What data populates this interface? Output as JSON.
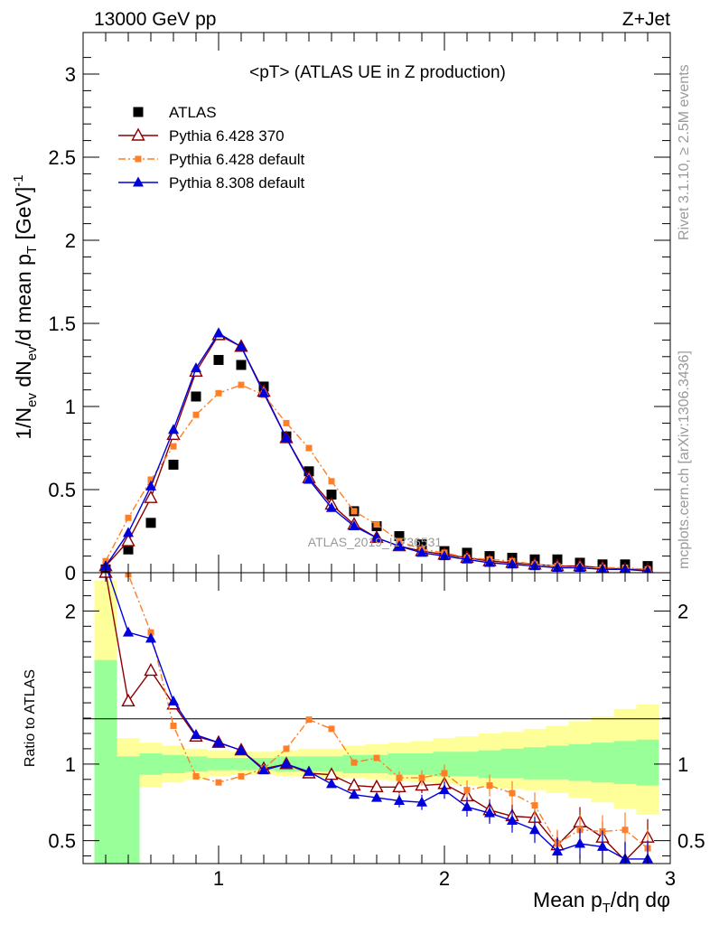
{
  "header": {
    "left": "13000 GeV pp",
    "right": "Z+Jet"
  },
  "side_labels": {
    "top": "Rivet 3.1.10, ≥ 2.5M events",
    "bottom": "mcplots.cern.ch [arXiv:1306.3436]"
  },
  "watermark": "ATLAS_2019_I1736531",
  "colors": {
    "atlas": "#000000",
    "py6_370": "#8b0000",
    "py6_default": "#ff7f27",
    "py8": "#0000dd",
    "band_yellow": "#ffff99",
    "band_green": "#99ff99"
  },
  "chart_data": [
    {
      "type": "scatter",
      "title": "<pT> (ATLAS UE in Z production)",
      "ylabel": "1/N_ev dN_ev/d mean p_T [GeV]^-1",
      "ylabel_parts": {
        "a": "1/N",
        "a_sub": "ev",
        "b": " dN",
        "b_sub": "ev",
        "c": "/d mean p",
        "c_sub": "T",
        "d": " [GeV]",
        "d_sup": "-1"
      },
      "xlim": [
        0.4,
        3.0
      ],
      "ylim": [
        0,
        3.25
      ],
      "yticks": [
        0,
        0.5,
        1,
        1.5,
        2,
        2.5,
        3
      ],
      "ytick_labels": [
        "0",
        "0.5",
        "1",
        "1.5",
        "2",
        "2.5",
        "3"
      ],
      "x": [
        0.5,
        0.6,
        0.7,
        0.8,
        0.9,
        1.0,
        1.1,
        1.2,
        1.3,
        1.4,
        1.5,
        1.6,
        1.7,
        1.8,
        1.9,
        2.0,
        2.1,
        2.2,
        2.3,
        2.4,
        2.5,
        2.6,
        2.7,
        2.8,
        2.9
      ],
      "series": [
        {
          "name": "ATLAS",
          "style": "data",
          "values": [
            0.02,
            0.14,
            0.3,
            0.65,
            1.06,
            1.28,
            1.25,
            1.12,
            0.82,
            0.61,
            0.47,
            0.37,
            0.28,
            0.22,
            0.17,
            0.13,
            0.12,
            0.1,
            0.09,
            0.08,
            0.08,
            0.06,
            0.05,
            0.05,
            0.04
          ]
        },
        {
          "name": "Pythia 6.428 370",
          "style": "py6_370",
          "values": [
            0.04,
            0.19,
            0.45,
            0.83,
            1.21,
            1.43,
            1.36,
            1.09,
            0.81,
            0.57,
            0.41,
            0.29,
            0.21,
            0.16,
            0.13,
            0.11,
            0.09,
            0.07,
            0.06,
            0.05,
            0.04,
            0.04,
            0.03,
            0.02,
            0.02
          ]
        },
        {
          "name": "Pythia 6.428 default",
          "style": "py6_default",
          "values": [
            0.07,
            0.33,
            0.56,
            0.76,
            0.95,
            1.08,
            1.13,
            1.07,
            0.9,
            0.75,
            0.55,
            0.37,
            0.29,
            0.19,
            0.14,
            0.12,
            0.09,
            0.08,
            0.07,
            0.05,
            0.04,
            0.03,
            0.03,
            0.03,
            0.02
          ]
        },
        {
          "name": "Pythia 8.308 default",
          "style": "py8",
          "values": [
            0.04,
            0.24,
            0.52,
            0.86,
            1.23,
            1.44,
            1.36,
            1.08,
            0.81,
            0.56,
            0.39,
            0.28,
            0.21,
            0.16,
            0.12,
            0.1,
            0.08,
            0.06,
            0.05,
            0.04,
            0.03,
            0.03,
            0.02,
            0.02,
            0.01
          ]
        }
      ],
      "legend": [
        "ATLAS",
        "Pythia 6.428 370",
        "Pythia 6.428 default",
        "Pythia 8.308 default"
      ],
      "legend_position": "top-left"
    },
    {
      "type": "line",
      "ylabel": "Ratio to ATLAS",
      "xlabel": "Mean p_T/dη dφ",
      "xlabel_parts": {
        "a": "Mean p",
        "a_sub": "T",
        "b": "/dη dφ"
      },
      "xlim": [
        0.4,
        3.0
      ],
      "ylim": [
        0.35,
        2.25
      ],
      "xticks": [
        1,
        2,
        3
      ],
      "xtick_labels": [
        "1",
        "2",
        "3"
      ],
      "yticks": [
        0.5,
        1,
        2
      ],
      "ytick_labels": [
        "0.5",
        "1",
        "2"
      ],
      "reference_line": 1,
      "x": [
        0.5,
        0.6,
        0.7,
        0.8,
        0.9,
        1.0,
        1.1,
        1.2,
        1.3,
        1.4,
        1.5,
        1.6,
        1.7,
        1.8,
        1.9,
        2.0,
        2.1,
        2.2,
        2.3,
        2.4,
        2.5,
        2.6,
        2.7,
        2.8,
        2.9
      ],
      "bands": {
        "x_edges": [
          0.45,
          0.55,
          0.65,
          0.75,
          0.85,
          0.95,
          1.05,
          1.15,
          1.25,
          1.35,
          1.45,
          1.55,
          1.65,
          1.75,
          1.85,
          1.95,
          2.05,
          2.15,
          2.25,
          2.35,
          2.45,
          2.55,
          2.65,
          2.75,
          2.85,
          2.95
        ],
        "green_low": [
          0.35,
          0.35,
          0.93,
          0.94,
          0.95,
          0.96,
          0.96,
          0.96,
          0.95,
          0.95,
          0.95,
          0.94,
          0.94,
          0.93,
          0.93,
          0.92,
          0.92,
          0.91,
          0.91,
          0.9,
          0.9,
          0.89,
          0.88,
          0.87,
          0.86
        ],
        "green_high": [
          1.68,
          1.05,
          1.07,
          1.06,
          1.05,
          1.04,
          1.04,
          1.04,
          1.05,
          1.05,
          1.05,
          1.06,
          1.06,
          1.07,
          1.07,
          1.08,
          1.08,
          1.09,
          1.1,
          1.11,
          1.12,
          1.13,
          1.14,
          1.15,
          1.16
        ],
        "yellow_low": [
          0.35,
          0.8,
          0.85,
          0.88,
          0.9,
          0.92,
          0.93,
          0.93,
          0.92,
          0.92,
          0.91,
          0.91,
          0.9,
          0.89,
          0.88,
          0.87,
          0.86,
          0.85,
          0.84,
          0.83,
          0.81,
          0.78,
          0.75,
          0.71,
          0.67
        ],
        "yellow_high": [
          2.2,
          1.17,
          1.14,
          1.12,
          1.1,
          1.09,
          1.08,
          1.08,
          1.09,
          1.1,
          1.1,
          1.12,
          1.13,
          1.14,
          1.15,
          1.17,
          1.18,
          1.2,
          1.21,
          1.23,
          1.25,
          1.28,
          1.31,
          1.36,
          1.39
        ]
      },
      "series": [
        {
          "name": "Pythia 6.428 370",
          "style": "py6_370",
          "values": [
            2.25,
            1.41,
            1.61,
            1.39,
            1.18,
            1.14,
            1.09,
            0.97,
            1.0,
            0.94,
            0.93,
            0.86,
            0.85,
            0.85,
            0.86,
            0.87,
            0.79,
            0.7,
            0.66,
            0.65,
            0.47,
            0.62,
            0.52,
            0.37,
            0.52
          ]
        },
        {
          "name": "Pythia 6.428 default",
          "style": "py6_default",
          "values": [
            2.45,
            2.24,
            1.86,
            1.25,
            0.92,
            0.88,
            0.92,
            0.97,
            1.1,
            1.29,
            1.23,
            1.01,
            1.04,
            0.91,
            0.91,
            0.94,
            0.83,
            0.86,
            0.81,
            0.73,
            0.48,
            0.57,
            0.56,
            0.57,
            0.45
          ]
        },
        {
          "name": "Pythia 8.308 default",
          "style": "py8",
          "values": [
            2.3,
            1.86,
            1.82,
            1.41,
            1.19,
            1.14,
            1.09,
            0.96,
            1.0,
            0.95,
            0.87,
            0.8,
            0.78,
            0.76,
            0.75,
            0.83,
            0.72,
            0.68,
            0.63,
            0.57,
            0.43,
            0.48,
            0.46,
            0.38,
            0.38
          ]
        }
      ]
    }
  ]
}
